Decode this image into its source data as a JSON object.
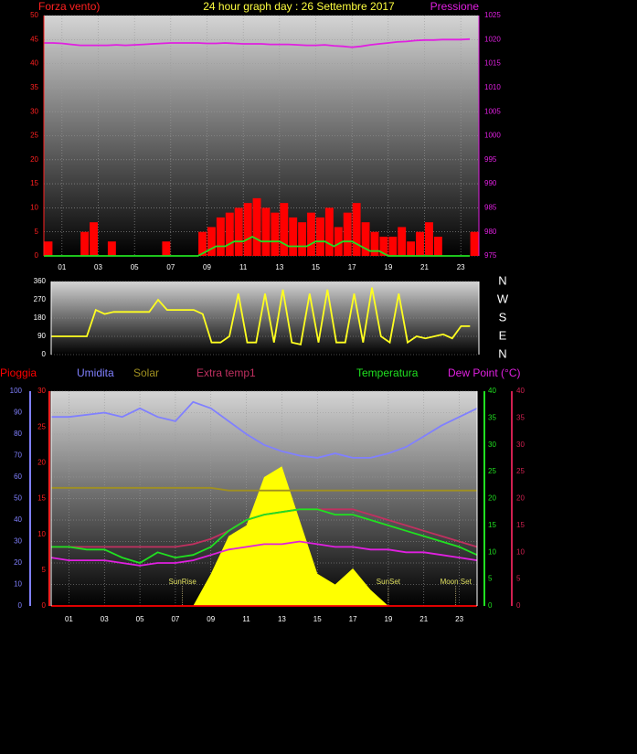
{
  "chart_data": [
    {
      "type": "combo",
      "title": "24 hour graph day : 26 Settembre 2017",
      "ylabel": "Forza vento)",
      "y2label": "Pressione",
      "x": [
        0,
        0.5,
        1,
        1.5,
        2,
        2.5,
        3,
        3.5,
        4,
        4.5,
        5,
        5.5,
        6,
        6.5,
        7,
        7.5,
        8,
        8.5,
        9,
        9.5,
        10,
        10.5,
        11,
        11.5,
        12,
        12.5,
        13,
        13.5,
        14,
        14.5,
        15,
        15.5,
        16,
        16.5,
        17,
        17.5,
        18,
        18.5,
        19,
        19.5,
        20,
        20.5,
        21,
        21.5,
        22,
        22.5,
        23,
        23.5
      ],
      "xlim": [
        0,
        24
      ],
      "xticks": [
        {
          "value": 1,
          "label": "01"
        },
        {
          "value": 3,
          "label": "03"
        },
        {
          "value": 5,
          "label": "05"
        },
        {
          "value": 7,
          "label": "07"
        },
        {
          "value": 9,
          "label": "09"
        },
        {
          "value": 11,
          "label": "11"
        },
        {
          "value": 13,
          "label": "13"
        },
        {
          "value": 15,
          "label": "15"
        },
        {
          "value": 17,
          "label": "17"
        },
        {
          "value": 19,
          "label": "19"
        },
        {
          "value": 21,
          "label": "21"
        },
        {
          "value": 23,
          "label": "23"
        }
      ],
      "ylim": [
        0,
        50
      ],
      "yticks": [
        0,
        5,
        10,
        15,
        20,
        25,
        30,
        35,
        40,
        45,
        50
      ],
      "y2lim": [
        975,
        1025
      ],
      "y2ticks": [
        975,
        980,
        985,
        990,
        995,
        1000,
        1005,
        1010,
        1015,
        1020,
        1025
      ],
      "axis_colors": {
        "y": "#ff2020",
        "y2": "#e020e0"
      },
      "grid": true,
      "series": [
        {
          "type": "bar",
          "color": "#ff0000",
          "axis": "y",
          "values": [
            3,
            0,
            0,
            0,
            5,
            7,
            0,
            3,
            0,
            0,
            0,
            0,
            0,
            3,
            0,
            0,
            0,
            5,
            6,
            8,
            9,
            10,
            11,
            12,
            10,
            9,
            11,
            8,
            7,
            9,
            8,
            10,
            6,
            9,
            11,
            7,
            5,
            4,
            4,
            6,
            3,
            5,
            7,
            4,
            0,
            0,
            0,
            5
          ]
        },
        {
          "type": "line",
          "color": "#20e020",
          "axis": "y",
          "values": [
            0,
            0,
            0,
            0,
            0,
            0,
            0,
            0,
            0,
            0,
            0,
            0,
            0,
            0,
            0,
            0,
            0,
            0,
            1,
            2,
            2,
            3,
            3,
            4,
            3,
            3,
            3,
            2,
            2,
            2,
            3,
            3,
            2,
            3,
            3,
            2,
            1,
            1,
            0,
            0,
            0,
            0,
            0,
            0,
            0,
            0,
            0,
            0
          ]
        },
        {
          "type": "line",
          "color": "#e020e0",
          "axis": "y2",
          "values": [
            1019.3,
            1019.3,
            1019.2,
            1019,
            1018.8,
            1018.8,
            1018.8,
            1018.8,
            1018.9,
            1018.8,
            1018.9,
            1019,
            1019.1,
            1019.2,
            1019.3,
            1019.3,
            1019.3,
            1019.3,
            1019.2,
            1019.2,
            1019.3,
            1019.2,
            1019.1,
            1019.1,
            1019.1,
            1019,
            1019,
            1019,
            1018.9,
            1018.8,
            1018.8,
            1018.9,
            1018.7,
            1018.6,
            1018.4,
            1018.6,
            1018.9,
            1019.1,
            1019.3,
            1019.5,
            1019.6,
            1019.8,
            1019.9,
            1019.9,
            1020,
            1020,
            1020,
            1020.1
          ]
        }
      ]
    },
    {
      "type": "combo",
      "x": [
        0,
        0.5,
        1,
        1.5,
        2,
        2.5,
        3,
        3.5,
        4,
        4.5,
        5,
        5.5,
        6,
        6.5,
        7,
        7.5,
        8,
        8.5,
        9,
        9.5,
        10,
        10.5,
        11,
        11.5,
        12,
        12.5,
        13,
        13.5,
        14,
        14.5,
        15,
        15.5,
        16,
        16.5,
        17,
        17.5,
        18,
        18.5,
        19,
        19.5,
        20,
        20.5,
        21,
        21.5,
        22,
        22.5,
        23,
        23.5
      ],
      "xlim": [
        0,
        24
      ],
      "ylim": [
        0,
        360
      ],
      "yticks": [
        0,
        90,
        180,
        270,
        360
      ],
      "y2lim": [
        0,
        360
      ],
      "y2ticks": [
        {
          "value": 360,
          "label": "N"
        },
        {
          "value": 270,
          "label": "W"
        },
        {
          "value": 180,
          "label": "S"
        },
        {
          "value": 90,
          "label": "E"
        },
        {
          "value": 0,
          "label": "N"
        }
      ],
      "axis_colors": {
        "y": "#ffffff",
        "y2": "#ffffff"
      },
      "grid": true,
      "series": [
        {
          "type": "line",
          "color": "#ffff20",
          "axis": "y",
          "values": [
            90,
            90,
            90,
            90,
            90,
            220,
            200,
            210,
            210,
            210,
            210,
            210,
            270,
            220,
            220,
            220,
            220,
            200,
            60,
            60,
            90,
            300,
            60,
            60,
            300,
            60,
            320,
            60,
            50,
            300,
            60,
            320,
            60,
            60,
            300,
            60,
            330,
            90,
            60,
            300,
            60,
            90,
            80,
            90,
            100,
            80,
            140,
            140
          ]
        }
      ]
    },
    {
      "type": "combo",
      "x": [
        0,
        1,
        2,
        3,
        4,
        5,
        6,
        7,
        8,
        9,
        10,
        11,
        12,
        13,
        14,
        15,
        16,
        17,
        18,
        19,
        20,
        21,
        22,
        23,
        24
      ],
      "xlim": [
        0,
        24
      ],
      "xticks": [
        {
          "value": 1,
          "label": "01"
        },
        {
          "value": 3,
          "label": "03"
        },
        {
          "value": 5,
          "label": "05"
        },
        {
          "value": 7,
          "label": "07"
        },
        {
          "value": 9,
          "label": "09"
        },
        {
          "value": 11,
          "label": "11"
        },
        {
          "value": 13,
          "label": "13"
        },
        {
          "value": 15,
          "label": "15"
        },
        {
          "value": 17,
          "label": "17"
        },
        {
          "value": 19,
          "label": "19"
        },
        {
          "value": 21,
          "label": "21"
        },
        {
          "value": 23,
          "label": "23"
        }
      ],
      "ylim": [
        0,
        100
      ],
      "yticks": [
        0,
        10,
        20,
        30,
        40,
        50,
        60,
        70,
        80,
        90,
        100
      ],
      "y2lim": [
        0,
        30
      ],
      "y2ticks": [
        0,
        5,
        10,
        15,
        20,
        25,
        30
      ],
      "y3lim": [
        0,
        40
      ],
      "y3ticks": [
        0,
        5,
        10,
        15,
        20,
        25,
        30,
        35,
        40
      ],
      "y4lim": [
        0,
        40
      ],
      "y4ticks": [
        0,
        5,
        10,
        15,
        20,
        25,
        30,
        35,
        40
      ],
      "axis_colors": {
        "y": "#8080ff",
        "y2": "#ff2020",
        "y3": "#20e020",
        "y4": "#d02050"
      },
      "grid": true,
      "series": [
        {
          "name": "Pioggia",
          "type": "line",
          "color": "#ff0000",
          "axis": "y2",
          "values": [
            0,
            0,
            0,
            0,
            0,
            0,
            0,
            0,
            0,
            0,
            0,
            0,
            0,
            0,
            0,
            0,
            0,
            0,
            0,
            0,
            0,
            0,
            0,
            0,
            0
          ]
        },
        {
          "name": "Umidita",
          "type": "line",
          "color": "#8080ff",
          "axis": "y",
          "values": [
            88,
            88,
            89,
            90,
            88,
            92,
            88,
            86,
            95,
            92,
            86,
            80,
            75,
            72,
            70,
            69,
            71,
            69,
            69,
            71,
            74,
            79,
            84,
            88,
            92
          ]
        },
        {
          "name": "Solar",
          "type": "area",
          "color": "#ffff00",
          "legend_color": "#a09020",
          "axis": "y3",
          "values": [
            0,
            0,
            0,
            0,
            0,
            0,
            0,
            0,
            0,
            6,
            13,
            15,
            24,
            26,
            16,
            6,
            4,
            7,
            3,
            0,
            0,
            0,
            0,
            0,
            0
          ]
        },
        {
          "name": "Extra temp1",
          "type": "line",
          "color": "#c03060",
          "axis": "y4",
          "values": [
            11,
            11,
            11,
            11,
            11,
            11,
            11,
            11,
            11.5,
            12.5,
            14,
            16,
            17,
            17.5,
            18,
            18,
            18,
            18,
            17,
            16,
            15,
            14,
            13,
            12,
            11
          ]
        },
        {
          "name": "Temperatura",
          "type": "line",
          "color": "#20e020",
          "axis": "y3",
          "values": [
            11,
            11,
            10.5,
            10.5,
            9,
            8,
            10,
            9,
            9.5,
            11,
            14,
            16,
            17,
            17.5,
            18,
            18,
            17,
            17,
            16,
            15,
            14,
            13,
            12,
            11,
            9.5
          ]
        },
        {
          "name": "Dew Point (°C)",
          "type": "line",
          "color": "#e020e0",
          "axis": "y3",
          "values": [
            9,
            8.5,
            8.5,
            8.5,
            8,
            7.5,
            8,
            8,
            8.5,
            9.5,
            10.5,
            11,
            11.5,
            11.5,
            12,
            11.5,
            11,
            11,
            10.5,
            10.5,
            10,
            10,
            9.5,
            9,
            8.5
          ]
        },
        {
          "type": "line",
          "color": "#a09020",
          "axis": "y3",
          "values": [
            22,
            22,
            22,
            22,
            22,
            22,
            22,
            22,
            22,
            22,
            21.5,
            21.5,
            21.5,
            21.5,
            21.5,
            21.5,
            21.5,
            21.5,
            21.5,
            21.5,
            21.5,
            21.5,
            21.5,
            21.5,
            21.5
          ]
        }
      ],
      "annotations": [
        {
          "text": "SunRise",
          "x": 7.4
        },
        {
          "text": "SunSet",
          "x": 19
        },
        {
          "text": "Moon Set",
          "x": 22.8
        }
      ]
    }
  ]
}
